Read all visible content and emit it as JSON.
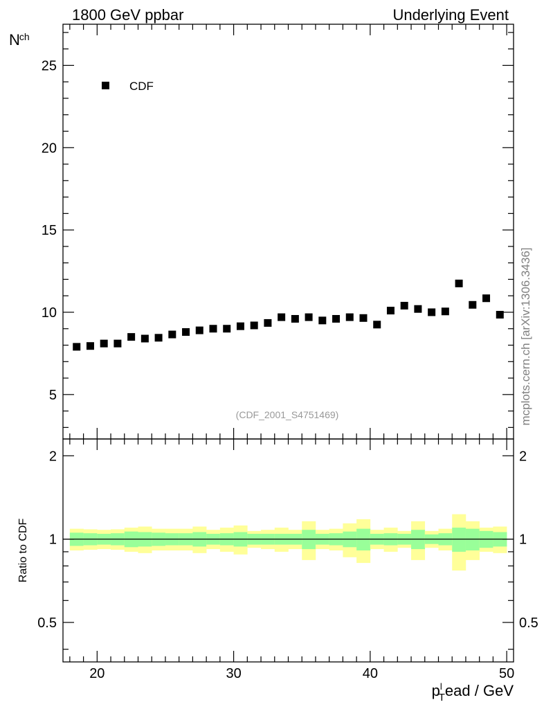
{
  "header": {
    "left_title": "1800 GeV ppbar",
    "right_title": "Underlying Event"
  },
  "watermark": "mcplots.cern.ch [arXiv:1306.3436]",
  "analysis_label": "(CDF_2001_S4751469)",
  "colors": {
    "marker": "#000000",
    "band_inner": "#99ff99",
    "band_outer": "#ffff99",
    "watermark": "#808080",
    "analysis_label": "#999999"
  },
  "chart_data": [
    {
      "type": "scatter",
      "name": "main",
      "ylabel_main": "N",
      "ylabel_sub": "ch",
      "xlim": [
        17.5,
        50.5
      ],
      "ylim": [
        2.3,
        27.5
      ],
      "yticks": [
        5,
        10,
        15,
        20,
        25
      ],
      "ytick_labels": [
        "5",
        "10",
        "15",
        "20",
        "25"
      ],
      "legend": {
        "label": "CDF",
        "position": "top-left"
      },
      "series": [
        {
          "name": "CDF",
          "x": [
            18.5,
            19.5,
            20.5,
            21.5,
            22.5,
            23.5,
            24.5,
            25.5,
            26.5,
            27.5,
            28.5,
            29.5,
            30.5,
            31.5,
            32.5,
            33.5,
            34.5,
            35.5,
            36.5,
            37.5,
            38.5,
            39.5,
            40.5,
            41.5,
            42.5,
            43.5,
            44.5,
            45.5,
            46.5,
            47.5,
            48.5,
            49.5
          ],
          "y": [
            7.9,
            7.95,
            8.1,
            8.1,
            8.5,
            8.4,
            8.45,
            8.65,
            8.8,
            8.9,
            9.0,
            9.0,
            9.15,
            9.2,
            9.35,
            9.7,
            9.6,
            9.7,
            9.5,
            9.6,
            9.7,
            9.65,
            9.25,
            10.1,
            10.4,
            10.2,
            10.0,
            10.05,
            11.75,
            10.45,
            10.85,
            9.85
          ]
        }
      ]
    },
    {
      "type": "ratio",
      "name": "ratio",
      "ylabel": "Ratio to CDF",
      "scale": "log",
      "xlim": [
        17.5,
        50.5
      ],
      "ylim": [
        0.36,
        2.3
      ],
      "yticks": [
        0.5,
        1,
        2
      ],
      "ytick_labels": [
        "0.5",
        "1",
        "2"
      ],
      "xticks": [
        20,
        30,
        40,
        50
      ],
      "xtick_labels": [
        "20",
        "30",
        "40",
        "50"
      ],
      "xlabel_p": "p",
      "xlabel_sup": "l",
      "xlabel_sub": "T",
      "xlabel_rest": "ead / GeV",
      "bins": [
        18,
        19,
        20,
        21,
        22,
        23,
        24,
        25,
        26,
        27,
        28,
        29,
        30,
        31,
        32,
        33,
        34,
        35,
        36,
        37,
        38,
        39,
        40,
        41,
        42,
        43,
        44,
        45,
        46,
        47,
        48,
        49,
        50
      ],
      "stat_err": [
        0.055,
        0.05,
        0.045,
        0.05,
        0.065,
        0.06,
        0.055,
        0.05,
        0.05,
        0.06,
        0.045,
        0.05,
        0.06,
        0.045,
        0.045,
        0.045,
        0.045,
        0.08,
        0.045,
        0.05,
        0.065,
        0.09,
        0.045,
        0.05,
        0.045,
        0.08,
        0.04,
        0.05,
        0.1,
        0.09,
        0.07,
        0.06
      ],
      "total_err": [
        0.09,
        0.085,
        0.08,
        0.085,
        0.1,
        0.11,
        0.09,
        0.09,
        0.09,
        0.11,
        0.08,
        0.1,
        0.12,
        0.07,
        0.08,
        0.1,
        0.08,
        0.16,
        0.08,
        0.09,
        0.14,
        0.18,
        0.08,
        0.1,
        0.07,
        0.16,
        0.07,
        0.09,
        0.23,
        0.16,
        0.1,
        0.11
      ]
    }
  ]
}
